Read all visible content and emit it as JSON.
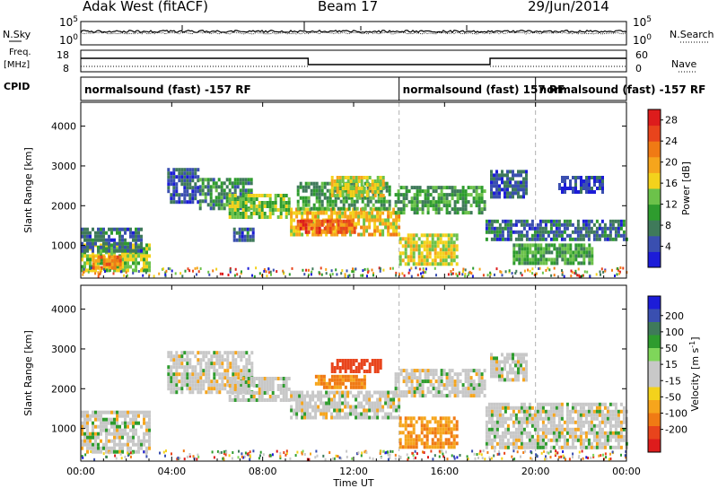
{
  "header": {
    "site": "Adak West (fitACF)",
    "beam": "Beam 17",
    "date": "29/Jun/2014"
  },
  "strip_labels": {
    "nsky": "N.Sky",
    "nsearch": "N.Search",
    "freq": "Freq.",
    "freq_unit": "[MHz]",
    "nave": "Nave",
    "cpid": "CPID"
  },
  "noise_ticks": {
    "top": "10^5",
    "bottom": "10^0"
  },
  "freq_ticks": [
    "18",
    "8"
  ],
  "nave_ticks": [
    "60",
    "0"
  ],
  "cpid_segments": [
    {
      "label": "normalsound (fast) -157 RF",
      "start": 0
    },
    {
      "label": "normalsound (fast) 157 RF",
      "start": 14
    },
    {
      "label": "normalsound (fast) -157 RF",
      "start": 20
    }
  ],
  "colors": {
    "power": [
      "#1c1cd8",
      "#3a4fb0",
      "#3f7a5a",
      "#2e9c2e",
      "#6cc24a",
      "#f3d21c",
      "#f6a51c",
      "#f07a14",
      "#e8441c",
      "#dd1c1c"
    ],
    "velocity": [
      "#1c1cd8",
      "#3a4fb0",
      "#3f7a5a",
      "#2e9c2e",
      "#7fd65a",
      "#c8c8c8",
      "#c8c8c8",
      "#f3d21c",
      "#f6a51c",
      "#f07a14",
      "#e8441c",
      "#dd1c1c"
    ],
    "ground_scatter": "#c8c8c8"
  },
  "chart_data": [
    {
      "type": "heatmap",
      "title": "Power",
      "xlabel": "Time UT",
      "ylabel": "Slant Range [km]",
      "xlim": [
        0,
        24
      ],
      "ylim": [
        180,
        4600
      ],
      "x_ticks": [
        "00:00",
        "04:00",
        "08:00",
        "12:00",
        "16:00",
        "20:00",
        "00:00"
      ],
      "y_ticks": [
        "1000",
        "2000",
        "3000",
        "4000"
      ],
      "colorbar": {
        "label": "Power [dB]",
        "range": [
          0,
          30
        ],
        "ticks": [
          "4",
          "8",
          "12",
          "16",
          "20",
          "24",
          "28"
        ]
      },
      "bands": [
        {
          "t0": 0.0,
          "t1": 3.0,
          "r0": 380,
          "r1": 1050,
          "p": 14
        },
        {
          "t0": 0.5,
          "t1": 1.8,
          "r0": 450,
          "r1": 750,
          "p": 22
        },
        {
          "t0": 0.0,
          "t1": 2.7,
          "r0": 900,
          "r1": 1450,
          "p": 6
        },
        {
          "t0": 3.8,
          "t1": 5.2,
          "r0": 2100,
          "r1": 2950,
          "p": 5
        },
        {
          "t0": 5.2,
          "t1": 7.5,
          "r0": 1950,
          "r1": 2700,
          "p": 9
        },
        {
          "t0": 6.5,
          "t1": 9.2,
          "r0": 1750,
          "r1": 2300,
          "p": 13
        },
        {
          "t0": 6.7,
          "t1": 7.6,
          "r0": 1100,
          "r1": 1450,
          "p": 6
        },
        {
          "t0": 9.2,
          "t1": 14.0,
          "r0": 1300,
          "r1": 1950,
          "p": 18
        },
        {
          "t0": 9.5,
          "t1": 12.0,
          "r0": 1300,
          "r1": 1650,
          "p": 24
        },
        {
          "t0": 9.5,
          "t1": 13.6,
          "r0": 1950,
          "r1": 2600,
          "p": 10
        },
        {
          "t0": 11.0,
          "t1": 13.3,
          "r0": 2250,
          "r1": 2750,
          "p": 16
        },
        {
          "t0": 14.0,
          "t1": 16.5,
          "r0": 500,
          "r1": 1300,
          "p": 16
        },
        {
          "t0": 13.8,
          "t1": 17.8,
          "r0": 1850,
          "r1": 2500,
          "p": 10
        },
        {
          "t0": 17.8,
          "t1": 24.0,
          "r0": 1150,
          "r1": 1650,
          "p": 6
        },
        {
          "t0": 19.0,
          "t1": 22.5,
          "r0": 550,
          "r1": 1050,
          "p": 11
        },
        {
          "t0": 18.0,
          "t1": 19.6,
          "r0": 2250,
          "r1": 2900,
          "p": 5
        },
        {
          "t0": 21.0,
          "t1": 23.0,
          "r0": 2350,
          "r1": 2750,
          "p": 4
        }
      ]
    },
    {
      "type": "heatmap",
      "title": "Velocity",
      "xlabel": "Time UT",
      "ylabel": "Slant Range [km]",
      "xlim": [
        0,
        24
      ],
      "ylim": [
        180,
        4600
      ],
      "x_ticks": [
        "00:00",
        "04:00",
        "08:00",
        "12:00",
        "16:00",
        "20:00",
        "00:00"
      ],
      "y_ticks": [
        "1000",
        "2000",
        "3000",
        "4000"
      ],
      "colorbar": {
        "label": "Velocity [m s^-1]",
        "range": [
          -250,
          250
        ],
        "ticks": [
          "200",
          "100",
          "50",
          "15",
          "-15",
          "-50",
          "-100",
          "-200"
        ]
      },
      "bands": [
        {
          "t0": 0.0,
          "t1": 3.0,
          "r0": 380,
          "r1": 1450,
          "v": 0
        },
        {
          "t0": 3.8,
          "t1": 7.5,
          "r0": 1950,
          "r1": 2950,
          "v": 0
        },
        {
          "t0": 6.5,
          "t1": 9.2,
          "r0": 1750,
          "r1": 2300,
          "v": 0
        },
        {
          "t0": 9.2,
          "t1": 14.0,
          "r0": 1300,
          "r1": 1950,
          "v": 0
        },
        {
          "t0": 10.3,
          "t1": 12.5,
          "r0": 2050,
          "r1": 2350,
          "v": -60
        },
        {
          "t0": 11.0,
          "t1": 13.2,
          "r0": 2400,
          "r1": 2750,
          "v": -150
        },
        {
          "t0": 14.0,
          "t1": 16.5,
          "r0": 500,
          "r1": 1300,
          "v": -45
        },
        {
          "t0": 13.8,
          "t1": 17.8,
          "r0": 1850,
          "r1": 2500,
          "v": 0
        },
        {
          "t0": 17.8,
          "t1": 24.0,
          "r0": 550,
          "r1": 1650,
          "v": 0
        },
        {
          "t0": 18.0,
          "t1": 19.6,
          "r0": 2250,
          "r1": 2900,
          "v": 0
        }
      ]
    }
  ]
}
